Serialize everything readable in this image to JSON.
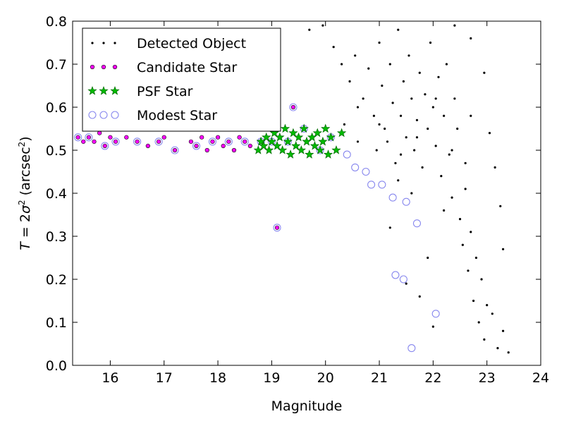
{
  "chart_data": {
    "type": "scatter",
    "title": "",
    "xlabel": "Magnitude",
    "ylabel_parts": [
      "T",
      " = 2",
      "σ",
      "2",
      " (arcsec",
      "2",
      ")"
    ],
    "xlim": [
      15.3,
      24
    ],
    "ylim": [
      0.0,
      0.8
    ],
    "xticks": [
      "16",
      "17",
      "18",
      "19",
      "20",
      "21",
      "22",
      "23",
      "24"
    ],
    "yticks": [
      "0.0",
      "0.1",
      "0.2",
      "0.3",
      "0.4",
      "0.5",
      "0.6",
      "0.7",
      "0.8"
    ],
    "grid": false,
    "legend_position": "top-left",
    "colors": {
      "detected": "#000000",
      "candidate": "#ff00ff",
      "psf_fill": "#00bb00",
      "psf_edge": "#006600",
      "modest": "#8888ee"
    },
    "series": [
      {
        "name": "Detected Object",
        "marker": "dot",
        "points": [
          [
            19.7,
            0.78
          ],
          [
            19.95,
            0.79
          ],
          [
            20.15,
            0.74
          ],
          [
            20.3,
            0.7
          ],
          [
            20.45,
            0.66
          ],
          [
            20.55,
            0.72
          ],
          [
            20.7,
            0.62
          ],
          [
            20.8,
            0.69
          ],
          [
            20.9,
            0.58
          ],
          [
            21.0,
            0.75
          ],
          [
            21.05,
            0.65
          ],
          [
            21.1,
            0.55
          ],
          [
            21.15,
            0.52
          ],
          [
            21.2,
            0.7
          ],
          [
            21.25,
            0.61
          ],
          [
            21.3,
            0.47
          ],
          [
            21.35,
            0.78
          ],
          [
            21.4,
            0.58
          ],
          [
            21.45,
            0.66
          ],
          [
            21.5,
            0.53
          ],
          [
            21.55,
            0.72
          ],
          [
            21.6,
            0.62
          ],
          [
            21.65,
            0.5
          ],
          [
            21.7,
            0.57
          ],
          [
            21.75,
            0.68
          ],
          [
            21.8,
            0.46
          ],
          [
            21.85,
            0.63
          ],
          [
            21.9,
            0.55
          ],
          [
            21.95,
            0.75
          ],
          [
            22.0,
            0.6
          ],
          [
            22.05,
            0.51
          ],
          [
            22.1,
            0.67
          ],
          [
            22.15,
            0.44
          ],
          [
            22.2,
            0.58
          ],
          [
            22.25,
            0.7
          ],
          [
            22.3,
            0.49
          ],
          [
            22.35,
            0.39
          ],
          [
            22.4,
            0.62
          ],
          [
            22.45,
            0.55
          ],
          [
            22.5,
            0.34
          ],
          [
            22.55,
            0.28
          ],
          [
            22.6,
            0.47
          ],
          [
            22.65,
            0.22
          ],
          [
            22.7,
            0.31
          ],
          [
            22.75,
            0.15
          ],
          [
            22.8,
            0.25
          ],
          [
            22.85,
            0.1
          ],
          [
            22.9,
            0.2
          ],
          [
            22.95,
            0.06
          ],
          [
            23.0,
            0.14
          ],
          [
            23.1,
            0.12
          ],
          [
            23.2,
            0.04
          ],
          [
            23.3,
            0.08
          ],
          [
            23.4,
            0.03
          ],
          [
            23.05,
            0.54
          ],
          [
            23.15,
            0.46
          ],
          [
            22.95,
            0.68
          ],
          [
            22.7,
            0.76
          ],
          [
            22.4,
            0.79
          ],
          [
            21.2,
            0.32
          ],
          [
            21.5,
            0.19
          ],
          [
            21.75,
            0.16
          ],
          [
            22.0,
            0.09
          ],
          [
            21.9,
            0.25
          ],
          [
            22.2,
            0.36
          ],
          [
            22.6,
            0.41
          ],
          [
            21.6,
            0.4
          ],
          [
            21.35,
            0.43
          ],
          [
            20.95,
            0.5
          ],
          [
            20.6,
            0.52
          ],
          [
            20.35,
            0.56
          ],
          [
            20.6,
            0.6
          ],
          [
            21.0,
            0.56
          ],
          [
            21.4,
            0.49
          ],
          [
            21.7,
            0.53
          ],
          [
            22.05,
            0.62
          ],
          [
            22.35,
            0.5
          ],
          [
            22.7,
            0.58
          ],
          [
            23.25,
            0.37
          ],
          [
            23.3,
            0.27
          ]
        ]
      },
      {
        "name": "Candidate Star",
        "marker": "small-circle",
        "points": [
          [
            15.4,
            0.53
          ],
          [
            15.5,
            0.52
          ],
          [
            15.6,
            0.53
          ],
          [
            15.7,
            0.52
          ],
          [
            15.8,
            0.54
          ],
          [
            15.9,
            0.51
          ],
          [
            16.0,
            0.53
          ],
          [
            16.1,
            0.52
          ],
          [
            16.3,
            0.53
          ],
          [
            16.5,
            0.52
          ],
          [
            16.7,
            0.51
          ],
          [
            16.9,
            0.52
          ],
          [
            17.0,
            0.53
          ],
          [
            17.2,
            0.5
          ],
          [
            17.5,
            0.52
          ],
          [
            17.6,
            0.51
          ],
          [
            17.7,
            0.53
          ],
          [
            17.8,
            0.5
          ],
          [
            17.9,
            0.52
          ],
          [
            18.0,
            0.53
          ],
          [
            18.1,
            0.51
          ],
          [
            18.2,
            0.52
          ],
          [
            18.3,
            0.5
          ],
          [
            18.4,
            0.53
          ],
          [
            18.5,
            0.52
          ],
          [
            18.6,
            0.51
          ],
          [
            19.4,
            0.6
          ],
          [
            19.1,
            0.32
          ]
        ]
      },
      {
        "name": "PSF Star",
        "marker": "star",
        "points": [
          [
            18.75,
            0.5
          ],
          [
            18.8,
            0.52
          ],
          [
            18.85,
            0.51
          ],
          [
            18.9,
            0.53
          ],
          [
            18.95,
            0.5
          ],
          [
            19.0,
            0.52
          ],
          [
            19.05,
            0.54
          ],
          [
            19.1,
            0.51
          ],
          [
            19.15,
            0.53
          ],
          [
            19.2,
            0.5
          ],
          [
            19.25,
            0.55
          ],
          [
            19.3,
            0.52
          ],
          [
            19.35,
            0.49
          ],
          [
            19.4,
            0.54
          ],
          [
            19.45,
            0.51
          ],
          [
            19.5,
            0.53
          ],
          [
            19.55,
            0.5
          ],
          [
            19.6,
            0.55
          ],
          [
            19.65,
            0.52
          ],
          [
            19.7,
            0.49
          ],
          [
            19.75,
            0.53
          ],
          [
            19.8,
            0.51
          ],
          [
            19.85,
            0.54
          ],
          [
            19.9,
            0.5
          ],
          [
            19.95,
            0.52
          ],
          [
            20.0,
            0.55
          ],
          [
            20.05,
            0.49
          ],
          [
            20.1,
            0.53
          ],
          [
            20.2,
            0.5
          ],
          [
            20.3,
            0.54
          ]
        ]
      },
      {
        "name": "Modest Star",
        "marker": "open-circle",
        "points": [
          [
            15.4,
            0.53
          ],
          [
            15.6,
            0.53
          ],
          [
            15.9,
            0.51
          ],
          [
            16.1,
            0.52
          ],
          [
            16.5,
            0.52
          ],
          [
            16.9,
            0.52
          ],
          [
            17.2,
            0.5
          ],
          [
            17.6,
            0.51
          ],
          [
            17.9,
            0.52
          ],
          [
            18.2,
            0.52
          ],
          [
            18.5,
            0.52
          ],
          [
            18.8,
            0.52
          ],
          [
            19.0,
            0.52
          ],
          [
            19.3,
            0.52
          ],
          [
            19.6,
            0.55
          ],
          [
            19.9,
            0.5
          ],
          [
            20.1,
            0.53
          ],
          [
            20.4,
            0.49
          ],
          [
            20.55,
            0.46
          ],
          [
            20.75,
            0.45
          ],
          [
            20.85,
            0.42
          ],
          [
            21.05,
            0.42
          ],
          [
            21.25,
            0.39
          ],
          [
            21.5,
            0.38
          ],
          [
            21.7,
            0.33
          ],
          [
            21.3,
            0.21
          ],
          [
            21.45,
            0.2
          ],
          [
            22.05,
            0.12
          ],
          [
            21.6,
            0.04
          ],
          [
            19.1,
            0.32
          ],
          [
            19.4,
            0.6
          ]
        ]
      }
    ]
  }
}
